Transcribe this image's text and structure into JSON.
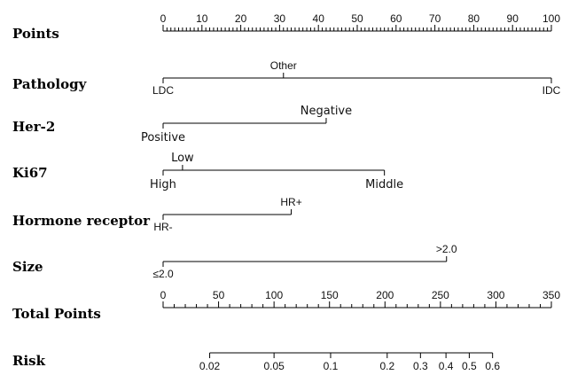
{
  "chart_data": {
    "type": "nomogram",
    "rows": [
      {
        "key": "points",
        "label": "Points",
        "kind": "scale",
        "min": 0,
        "max": 100,
        "major_step": 10,
        "minor_step": 1,
        "ticks": [
          {
            "value": 0,
            "label": "0"
          },
          {
            "value": 10,
            "label": "10"
          },
          {
            "value": 20,
            "label": "20"
          },
          {
            "value": 30,
            "label": "30"
          },
          {
            "value": 40,
            "label": "40"
          },
          {
            "value": 50,
            "label": "50"
          },
          {
            "value": 60,
            "label": "60"
          },
          {
            "value": 70,
            "label": "70"
          },
          {
            "value": 80,
            "label": "80"
          },
          {
            "value": 90,
            "label": "90"
          },
          {
            "value": 100,
            "label": "100"
          }
        ]
      },
      {
        "key": "pathology",
        "label": "Pathology",
        "kind": "variable",
        "levels": [
          {
            "label": "LDC",
            "points": 0,
            "side": "below"
          },
          {
            "label": "Other",
            "points": 31,
            "side": "above"
          },
          {
            "label": "IDC",
            "points": 100,
            "side": "below"
          }
        ]
      },
      {
        "key": "her2",
        "label": "Her-2",
        "kind": "variable",
        "levels": [
          {
            "label": "Positive",
            "points": 0,
            "side": "below"
          },
          {
            "label": "Negative",
            "points": 42,
            "side": "above"
          }
        ]
      },
      {
        "key": "ki67",
        "label": "Ki67",
        "kind": "variable",
        "levels": [
          {
            "label": "High",
            "points": 0,
            "side": "below"
          },
          {
            "label": "Low",
            "points": 5,
            "side": "above"
          },
          {
            "label": "Middle",
            "points": 57,
            "side": "below"
          }
        ]
      },
      {
        "key": "hormone",
        "label": "Hormone receptor",
        "kind": "variable",
        "levels": [
          {
            "label": "HR-",
            "points": 0,
            "side": "below"
          },
          {
            "label": "HR+",
            "points": 33,
            "side": "above"
          }
        ]
      },
      {
        "key": "size",
        "label": "Size",
        "kind": "variable",
        "levels": [
          {
            "label": "≤2.0",
            "points": 0,
            "side": "below"
          },
          {
            "label": ">2.0",
            "points": 73,
            "side": "above"
          }
        ]
      },
      {
        "key": "total",
        "label": "Total Points",
        "kind": "scale",
        "min": 0,
        "max": 350,
        "major_step": 50,
        "minor_step": 10,
        "ticks": [
          {
            "value": 0,
            "label": "0"
          },
          {
            "value": 50,
            "label": "50"
          },
          {
            "value": 100,
            "label": "100"
          },
          {
            "value": 150,
            "label": "150"
          },
          {
            "value": 200,
            "label": "200"
          },
          {
            "value": 250,
            "label": "250"
          },
          {
            "value": 300,
            "label": "300"
          },
          {
            "value": 350,
            "label": "350"
          }
        ]
      },
      {
        "key": "risk",
        "label": "Risk",
        "kind": "risk",
        "ticks": [
          {
            "label": "0.02",
            "total_points": 42
          },
          {
            "label": "0.05",
            "total_points": 100
          },
          {
            "label": "0.1",
            "total_points": 151
          },
          {
            "label": "0.2",
            "total_points": 202
          },
          {
            "label": "0.3",
            "total_points": 232
          },
          {
            "label": "0.4",
            "total_points": 255
          },
          {
            "label": "0.5",
            "total_points": 276
          },
          {
            "label": "0.6",
            "total_points": 297
          }
        ]
      }
    ]
  }
}
